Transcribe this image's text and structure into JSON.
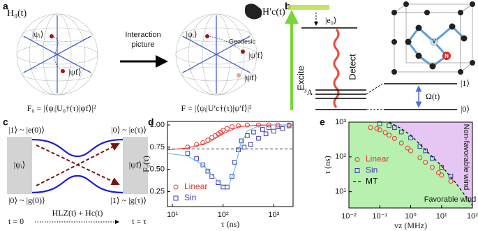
{
  "panel_labels": [
    "a",
    "b",
    "c",
    "d",
    "e"
  ],
  "panel_a": {
    "h0": "H₀(t)",
    "hc": "H′c(t)",
    "psi_i_1": "|ψᵢ⟩",
    "psi_f_1": "|ψf⟩",
    "interaction": [
      "Interaction",
      "picture"
    ],
    "psi_i_2": "|ψᵢ⟩",
    "geodesic": "Geodesic",
    "psi_f_prime": "|ψ′f⟩",
    "psi_f_2": "|ψf⟩",
    "f0": "F₀ = |⟨ψᵢ|U₀†(τ)|ψf⟩|²",
    "f": "F = |⟨ψᵢ|U′c†(τ)|ψ′f⟩|²"
  },
  "panel_b": {
    "e0": "|e₀⟩",
    "excite": "Excite",
    "detect": "Detect",
    "triplet": "³A",
    "level1": "|1⟩",
    "omega": "Ω(t)",
    "level0": "|0⟩",
    "vacancy": "V",
    "nitrogen": "N"
  },
  "panel_c": {
    "top_left": "|1⟩ ~ |e(0)⟩",
    "top_right": "|0⟩ ~ |e(τ)⟩",
    "psi_i": "|ψᵢ⟩",
    "psi_f": "|ψf⟩",
    "bottom_left": "|0⟩ ~ |g(0)⟩",
    "bottom_right": "|1⟩ ~ |g(τ)⟩",
    "t0": "t = 0",
    "hamiltonian": "HLZ(t) + Hc(t)",
    "ttau": "t = τ"
  },
  "chart_data": [
    {
      "type": "scatter",
      "xlabel": "τ (ns)",
      "ylabel": "F₀(τ)",
      "xscale": "log",
      "xlim": [
        8,
        2400
      ],
      "ylim": [
        0.08,
        1.04
      ],
      "xticks": [
        {
          "value": 10,
          "label": "10¹"
        },
        {
          "value": 100,
          "label": "10²"
        },
        {
          "value": 1000,
          "label": "10³"
        }
      ],
      "yticks": [
        0.25,
        {
          "value": 0.5,
          "label": "0.50"
        },
        0.75,
        {
          "value": 1,
          "label": "1.00"
        }
      ],
      "reference_line": 0.73,
      "legend": "lower left",
      "series": [
        {
          "name": "Linear",
          "color": "#e8352e",
          "marker": "circle",
          "x": [
            20,
            30,
            40,
            50,
            60,
            70,
            80,
            90,
            100,
            120,
            150,
            200,
            300,
            500,
            800,
            1200,
            2000
          ],
          "values": [
            0.75,
            0.78,
            0.8,
            0.83,
            0.86,
            0.88,
            0.9,
            0.92,
            0.94,
            0.96,
            0.98,
            0.99,
            1.0,
            1.0,
            1.0,
            1.0,
            1.0
          ]
        },
        {
          "name": "Sin",
          "color": "#3b3bb3",
          "marker": "square",
          "x": [
            20,
            30,
            40,
            50,
            60,
            80,
            100,
            120,
            150,
            170,
            200,
            230,
            260,
            300,
            350,
            400,
            500,
            600,
            700,
            800,
            1000,
            1200,
            1500,
            2000
          ],
          "values": [
            0.68,
            0.62,
            0.55,
            0.48,
            0.42,
            0.35,
            0.3,
            0.3,
            0.42,
            0.58,
            0.72,
            0.82,
            0.75,
            0.88,
            0.78,
            0.92,
            0.85,
            0.95,
            0.9,
            0.97,
            0.93,
            0.98,
            0.96,
            0.99
          ]
        },
        {
          "color": "#e8352e",
          "style": "line",
          "x": [
            8,
            20,
            50,
            100,
            200,
            500,
            2400
          ],
          "values": [
            0.72,
            0.74,
            0.8,
            0.9,
            0.98,
            1.0,
            1.0
          ]
        },
        {
          "color": "#4fb8e0",
          "style": "line",
          "x": [
            8,
            20,
            40,
            70,
            100,
            130,
            170,
            220,
            300,
            500,
            1000,
            2400
          ],
          "values": [
            0.68,
            0.65,
            0.55,
            0.4,
            0.31,
            0.32,
            0.5,
            0.78,
            0.93,
            0.99,
            1.0,
            1.0
          ]
        }
      ]
    },
    {
      "type": "scatter",
      "xlabel": "vz (MHz)",
      "ylabel": "τ (ns)",
      "xscale": "log",
      "yscale": "log",
      "xlim": [
        0.01,
        100
      ],
      "ylim": [
        3.4,
        1000
      ],
      "xticks": [
        {
          "value": 0.01,
          "label": "10⁻²"
        },
        {
          "value": 0.1,
          "label": "10⁻¹"
        },
        {
          "value": 1,
          "label": "10⁰"
        },
        {
          "value": 10,
          "label": "10¹"
        },
        {
          "value": 100,
          "label": "10²"
        }
      ],
      "yticks": [
        {
          "value": 10,
          "label": "10¹"
        },
        {
          "value": 100,
          "label": "10²"
        },
        {
          "value": 1000,
          "label": "10³"
        }
      ],
      "legend": "center left",
      "regions": [
        {
          "label": "Favorable wind",
          "color": "#b8f0b0"
        },
        {
          "label": "Non-favorable wind",
          "color": "#e6c6f2"
        }
      ],
      "series": [
        {
          "name": "Linear",
          "color": "#e8352e",
          "marker": "circle",
          "x": [
            0.05,
            0.08,
            0.1,
            0.15,
            0.2,
            0.3,
            0.5,
            0.8,
            1,
            2,
            3,
            5,
            8,
            10,
            20
          ],
          "values": [
            700,
            650,
            600,
            500,
            420,
            340,
            250,
            180,
            150,
            95,
            70,
            50,
            35,
            30,
            20
          ]
        },
        {
          "name": "Sin",
          "color": "#3b3bb3",
          "marker": "square",
          "x": [
            0.1,
            0.2,
            0.3,
            0.5,
            1,
            2,
            3,
            5,
            10,
            20
          ],
          "values": [
            900,
            800,
            700,
            520,
            350,
            200,
            150,
            90,
            50,
            28
          ]
        },
        {
          "name": "MT",
          "color": "#000000",
          "style": "dashed",
          "x": [
            0.2,
            0.5,
            1,
            3,
            10,
            30,
            100
          ],
          "values": [
            1000,
            650,
            420,
            160,
            55,
            17,
            4
          ]
        }
      ]
    }
  ]
}
